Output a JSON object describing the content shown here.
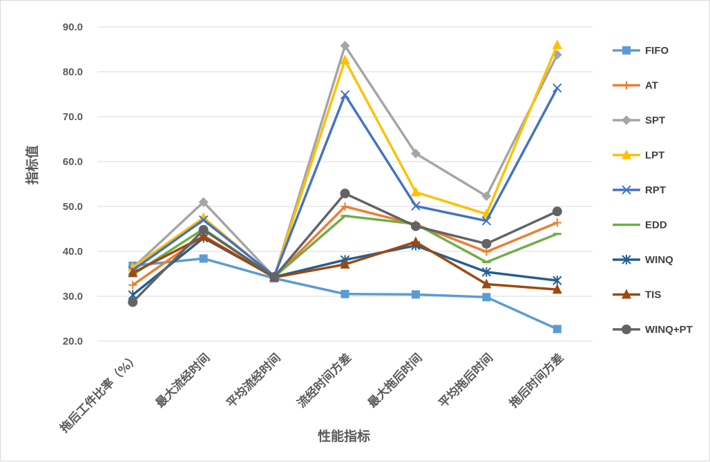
{
  "chart_data": {
    "type": "line",
    "title": "",
    "xlabel": "性能指标",
    "ylabel": "指标值",
    "ylim": [
      20,
      90
    ],
    "yticks": [
      "20.0",
      "30.0",
      "40.0",
      "50.0",
      "60.0",
      "70.0",
      "80.0",
      "90.0"
    ],
    "grid": true,
    "legend_position": "right",
    "categories": [
      "拖后工件比率（%）",
      "最大流经时间",
      "平均流经时间",
      "流经时间方差",
      "最大拖后时间",
      "平均拖后时间",
      "拖后时间方差"
    ],
    "series": [
      {
        "name": "FIFO",
        "color": "#5B9BD5",
        "marker": "square",
        "values": [
          36.8,
          38.4,
          34.0,
          30.5,
          30.4,
          29.8,
          22.7
        ]
      },
      {
        "name": "AT",
        "color": "#ED7D31",
        "marker": "plus",
        "values": [
          32.5,
          43.5,
          34.2,
          50.0,
          46.0,
          39.9,
          46.4
        ]
      },
      {
        "name": "SPT",
        "color": "#A5A5A5",
        "marker": "diamond",
        "values": [
          36.3,
          51.0,
          34.3,
          85.8,
          61.8,
          52.3,
          83.8
        ]
      },
      {
        "name": "LPT",
        "color": "#FFC000",
        "marker": "triangle",
        "values": [
          36.4,
          47.5,
          34.3,
          82.6,
          53.2,
          48.3,
          86.0
        ]
      },
      {
        "name": "RPT",
        "color": "#4472C4",
        "marker": "x",
        "values": [
          35.8,
          47.0,
          34.5,
          74.9,
          50.1,
          46.8,
          76.4
        ]
      },
      {
        "name": "EDD",
        "color": "#70AD47",
        "marker": "dash",
        "values": [
          34.8,
          45.0,
          34.3,
          47.9,
          46.1,
          37.6,
          43.9
        ]
      },
      {
        "name": "WINQ",
        "color": "#255E91",
        "marker": "star",
        "values": [
          30.3,
          43.0,
          34.3,
          38.1,
          41.3,
          35.4,
          33.5
        ]
      },
      {
        "name": "TIS",
        "color": "#9E480E",
        "marker": "triangle",
        "values": [
          35.2,
          43.3,
          34.2,
          37.1,
          42.1,
          32.7,
          31.5
        ]
      },
      {
        "name": "WINQ+PT",
        "color": "#636363",
        "marker": "circle",
        "values": [
          28.7,
          44.8,
          34.3,
          52.9,
          45.6,
          41.7,
          48.9
        ]
      }
    ]
  }
}
